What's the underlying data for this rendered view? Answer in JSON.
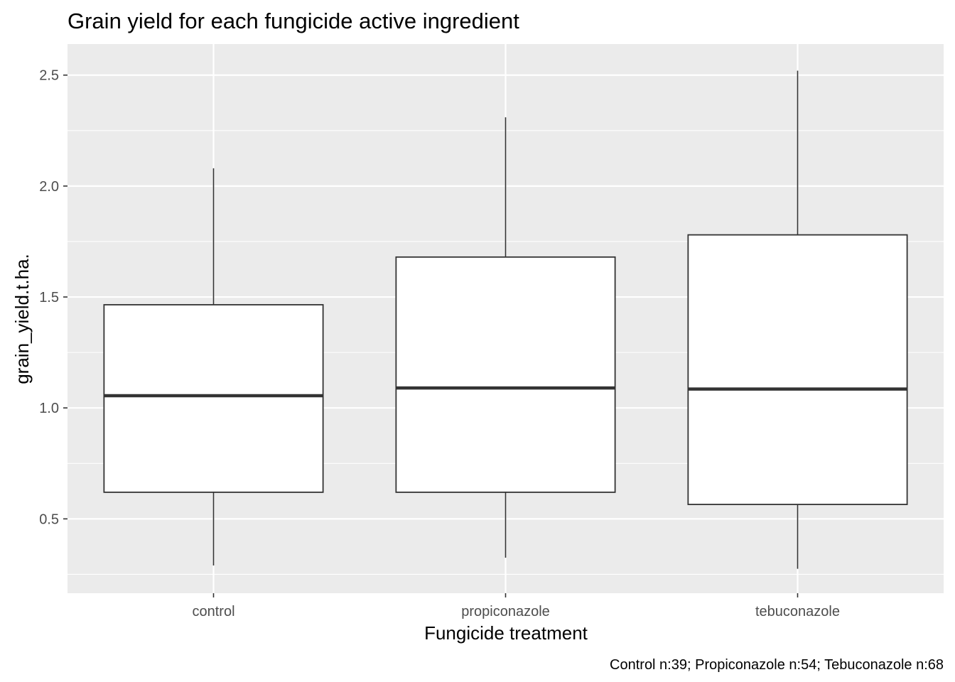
{
  "chart_data": {
    "type": "boxplot",
    "title": "Grain yield for each fungicide active ingredient",
    "xlabel": "Fungicide treatment",
    "ylabel": "grain_yield.t.ha.",
    "caption": "Control n:39; Propiconazole n:54; Tebuconazole n:68",
    "categories": [
      "control",
      "propiconazole",
      "tebuconazole"
    ],
    "boxes": [
      {
        "category": "control",
        "min": 0.29,
        "q1": 0.62,
        "median": 1.055,
        "q3": 1.465,
        "max": 2.08
      },
      {
        "category": "propiconazole",
        "min": 0.325,
        "q1": 0.62,
        "median": 1.09,
        "q3": 1.68,
        "max": 2.31
      },
      {
        "category": "tebuconazole",
        "min": 0.275,
        "q1": 0.565,
        "median": 1.085,
        "q3": 1.78,
        "max": 2.52
      }
    ],
    "ylim": [
      0.165,
      2.64
    ],
    "yticks": [
      0.5,
      1.0,
      1.5,
      2.0,
      2.5
    ],
    "ytick_labels": [
      "0.5",
      "1.0",
      "1.5",
      "2.0",
      "2.5"
    ],
    "grid": true,
    "colors": {
      "panel": "#ebebeb",
      "grid": "#ffffff",
      "box_fill": "#ffffff",
      "box_line": "#333333",
      "tick": "#333333"
    }
  }
}
